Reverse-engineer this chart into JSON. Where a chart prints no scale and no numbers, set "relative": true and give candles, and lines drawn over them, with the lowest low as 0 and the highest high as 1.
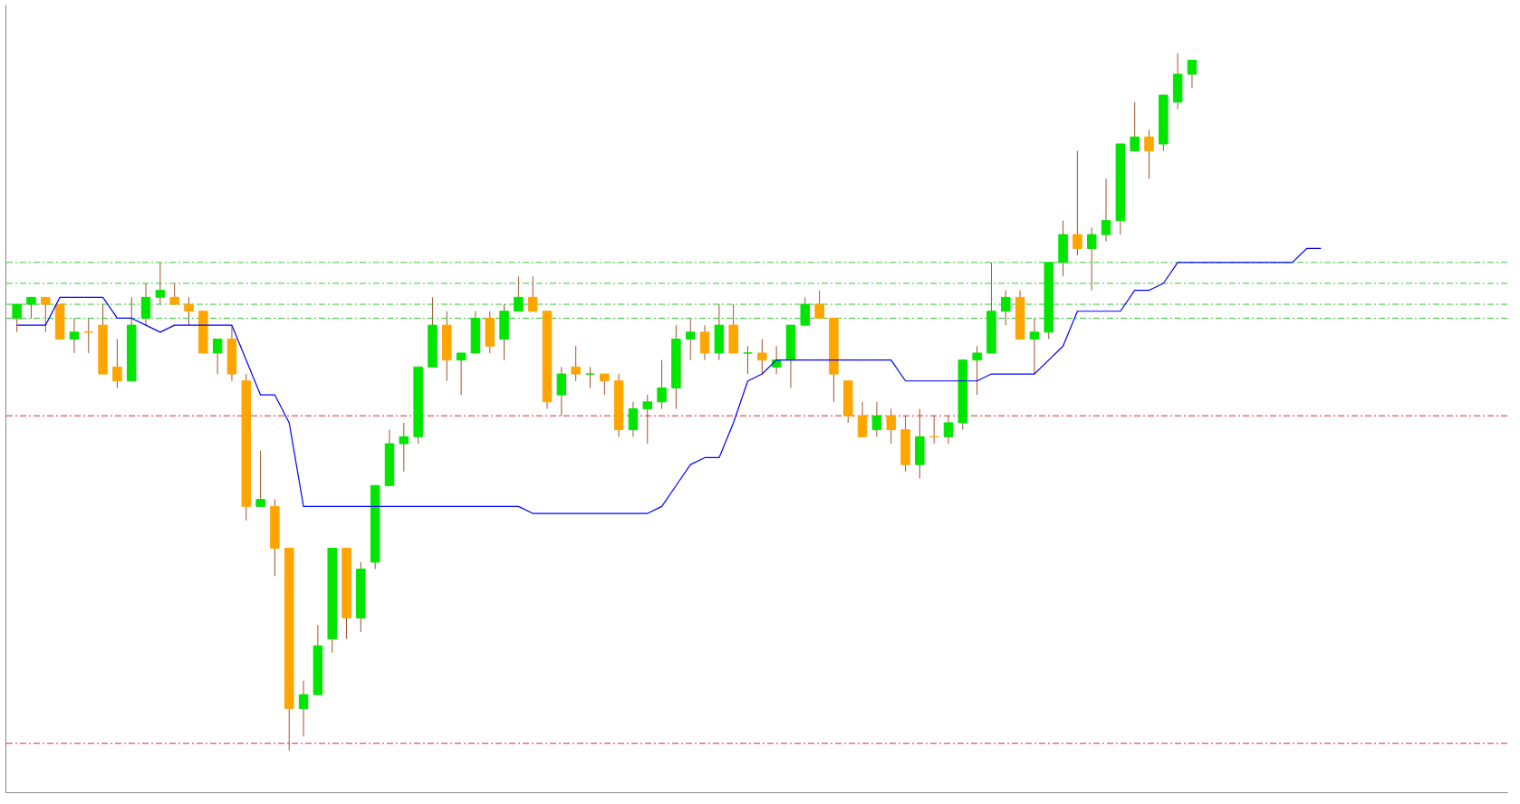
{
  "chart_data": {
    "type": "candlestick",
    "relative": true,
    "grid": false,
    "categories": [
      null,
      null,
      null,
      null,
      null,
      null,
      null,
      null,
      null,
      null,
      null,
      null,
      null,
      null,
      null,
      null,
      null,
      null,
      null,
      null,
      null,
      null,
      null,
      null,
      null,
      null,
      null,
      null,
      null,
      null,
      null,
      null,
      null,
      null,
      null,
      null,
      null,
      null,
      null,
      null,
      null,
      null,
      null,
      null,
      null,
      null,
      null,
      null,
      null,
      null,
      null,
      null,
      null,
      null,
      null,
      null,
      null,
      null,
      null,
      null,
      null,
      null,
      null,
      null,
      null,
      null,
      null,
      null,
      null,
      null,
      null,
      null,
      null,
      null,
      null,
      null,
      null,
      null,
      null,
      null,
      null,
      null,
      null,
      null,
      null,
      null,
      null,
      null,
      null,
      null,
      null,
      null
    ],
    "series": [
      {
        "ohlc": [
          [
            0.62,
            0.64,
            0.6,
            0.64
          ],
          [
            0.64,
            0.65,
            0.62,
            0.65
          ],
          [
            0.65,
            0.65,
            0.6,
            0.64
          ],
          [
            0.64,
            0.64,
            0.59,
            0.59
          ],
          [
            0.59,
            0.62,
            0.57,
            0.6
          ],
          [
            0.6,
            0.62,
            0.57,
            0.6
          ],
          [
            0.61,
            0.64,
            0.54,
            0.54
          ],
          [
            0.55,
            0.59,
            0.52,
            0.53
          ],
          [
            0.53,
            0.65,
            0.53,
            0.61
          ],
          [
            0.62,
            0.67,
            0.61,
            0.65
          ],
          [
            0.65,
            0.7,
            0.64,
            0.66
          ],
          [
            0.65,
            0.67,
            0.64,
            0.64
          ],
          [
            0.64,
            0.65,
            0.61,
            0.63
          ],
          [
            0.63,
            0.63,
            0.57,
            0.57
          ],
          [
            0.57,
            0.59,
            0.54,
            0.59
          ],
          [
            0.59,
            0.61,
            0.53,
            0.54
          ],
          [
            0.53,
            0.54,
            0.33,
            0.35
          ],
          [
            0.35,
            0.43,
            0.35,
            0.36
          ],
          [
            0.35,
            0.36,
            0.25,
            0.29
          ],
          [
            0.29,
            0.29,
            0,
            0.06
          ],
          [
            0.06,
            0.1,
            0.02,
            0.08
          ],
          [
            0.08,
            0.18,
            0.08,
            0.15
          ],
          [
            0.16,
            0.29,
            0.14,
            0.29
          ],
          [
            0.29,
            0.29,
            0.16,
            0.19
          ],
          [
            0.19,
            0.27,
            0.17,
            0.26
          ],
          [
            0.27,
            0.38,
            0.26,
            0.38
          ],
          [
            0.38,
            0.46,
            0.38,
            0.44
          ],
          [
            0.44,
            0.47,
            0.4,
            0.45
          ],
          [
            0.45,
            0.55,
            0.44,
            0.55
          ],
          [
            0.55,
            0.65,
            0.55,
            0.61
          ],
          [
            0.61,
            0.63,
            0.53,
            0.56
          ],
          [
            0.56,
            0.57,
            0.51,
            0.57
          ],
          [
            0.57,
            0.63,
            0.57,
            0.62
          ],
          [
            0.62,
            0.63,
            0.57,
            0.58
          ],
          [
            0.59,
            0.64,
            0.56,
            0.63
          ],
          [
            0.63,
            0.68,
            0.63,
            0.65
          ],
          [
            0.65,
            0.68,
            0.63,
            0.63
          ],
          [
            0.63,
            0.63,
            0.49,
            0.5
          ],
          [
            0.51,
            0.55,
            0.48,
            0.54
          ],
          [
            0.55,
            0.58,
            0.53,
            0.54
          ],
          [
            0.54,
            0.55,
            0.52,
            0.54
          ],
          [
            0.54,
            0.54,
            0.51,
            0.53
          ],
          [
            0.53,
            0.54,
            0.45,
            0.46
          ],
          [
            0.46,
            0.5,
            0.45,
            0.49
          ],
          [
            0.49,
            0.51,
            0.44,
            0.5
          ],
          [
            0.5,
            0.56,
            0.49,
            0.52
          ],
          [
            0.52,
            0.61,
            0.49,
            0.59
          ],
          [
            0.59,
            0.62,
            0.56,
            0.6
          ],
          [
            0.6,
            0.61,
            0.56,
            0.57
          ],
          [
            0.57,
            0.64,
            0.56,
            0.61
          ],
          [
            0.61,
            0.64,
            0.57,
            0.57
          ],
          [
            0.57,
            0.58,
            0.54,
            0.57
          ],
          [
            0.57,
            0.59,
            0.54,
            0.56
          ],
          [
            0.55,
            0.58,
            0.54,
            0.56
          ],
          [
            0.56,
            0.61,
            0.52,
            0.61
          ],
          [
            0.61,
            0.65,
            0.61,
            0.64
          ],
          [
            0.64,
            0.66,
            0.62,
            0.62
          ],
          [
            0.62,
            0.62,
            0.5,
            0.54
          ],
          [
            0.53,
            0.53,
            0.47,
            0.48
          ],
          [
            0.48,
            0.5,
            0.45,
            0.45
          ],
          [
            0.46,
            0.5,
            0.45,
            0.48
          ],
          [
            0.48,
            0.49,
            0.44,
            0.46
          ],
          [
            0.46,
            0.48,
            0.4,
            0.41
          ],
          [
            0.41,
            0.49,
            0.39,
            0.45
          ],
          [
            0.45,
            0.48,
            0.44,
            0.45
          ],
          [
            0.45,
            0.48,
            0.44,
            0.47
          ],
          [
            0.47,
            0.56,
            0.46,
            0.56
          ],
          [
            0.56,
            0.58,
            0.51,
            0.57
          ],
          [
            0.57,
            0.7,
            0.57,
            0.63
          ],
          [
            0.63,
            0.66,
            0.61,
            0.65
          ],
          [
            0.65,
            0.66,
            0.59,
            0.59
          ],
          [
            0.59,
            0.62,
            0.54,
            0.6
          ],
          [
            0.6,
            0.7,
            0.59,
            0.7
          ],
          [
            0.7,
            0.76,
            0.68,
            0.74
          ],
          [
            0.74,
            0.86,
            0.71,
            0.72
          ],
          [
            0.72,
            0.75,
            0.66,
            0.74
          ],
          [
            0.74,
            0.82,
            0.73,
            0.76
          ],
          [
            0.76,
            0.87,
            0.74,
            0.87
          ],
          [
            0.86,
            0.93,
            0.86,
            0.88
          ],
          [
            0.88,
            0.89,
            0.82,
            0.86
          ],
          [
            0.87,
            0.94,
            0.86,
            0.94
          ],
          [
            0.93,
            1,
            0.92,
            0.97
          ],
          [
            0.97,
            0.99,
            0.95,
            0.99
          ],
          null,
          null,
          null,
          null,
          null,
          null,
          null,
          null,
          null
        ],
        "colors": [
          "#00e600",
          "#00e600",
          "#ffa500",
          "#ffa500",
          "#00e600",
          "#ffa500",
          "#ffa500",
          "#ffa500",
          "#00e600",
          "#00e600",
          "#00e600",
          "#ffa500",
          "#ffa500",
          "#ffa500",
          "#00e600",
          "#ffa500",
          "#ffa500",
          "#00e600",
          "#ffa500",
          "#ffa500",
          "#00e600",
          "#00e600",
          "#00e600",
          "#ffa500",
          "#00e600",
          "#00e600",
          "#00e600",
          "#00e600",
          "#00e600",
          "#00e600",
          "#ffa500",
          "#00e600",
          "#00e600",
          "#ffa500",
          "#00e600",
          "#00e600",
          "#ffa500",
          "#ffa500",
          "#00e600",
          "#ffa500",
          "#00e600",
          "#ffa500",
          "#ffa500",
          "#00e600",
          "#00e600",
          "#00e600",
          "#00e600",
          "#00e600",
          "#ffa500",
          "#00e600",
          "#ffa500",
          "#00e600",
          "#ffa500",
          "#00e600",
          "#00e600",
          "#00e600",
          "#ffa500",
          "#ffa500",
          "#ffa500",
          "#ffa500",
          "#00e600",
          "#ffa500",
          "#ffa500",
          "#00e600",
          "#ffa500",
          "#00e600",
          "#00e600",
          "#00e600",
          "#00e600",
          "#00e600",
          "#ffa500",
          "#00e600",
          "#00e600",
          "#00e600",
          "#ffa500",
          "#00e600",
          "#00e600",
          "#00e600",
          "#00e600",
          "#ffa500",
          "#00e600",
          "#00e600",
          "#00e600",
          null,
          null,
          null,
          null,
          null,
          null,
          null,
          null,
          null
        ]
      },
      {
        "type": "line",
        "color": "#0000ff",
        "values": [
          0.61,
          0.61,
          0.61,
          0.65,
          0.65,
          0.65,
          0.65,
          0.62,
          0.62,
          0.61,
          0.6,
          0.61,
          0.61,
          0.61,
          0.61,
          0.61,
          0.56,
          0.51,
          0.51,
          0.47,
          0.35,
          0.35,
          0.35,
          0.35,
          0.35,
          0.35,
          0.35,
          0.35,
          0.35,
          0.35,
          0.35,
          0.35,
          0.35,
          0.35,
          0.35,
          0.35,
          0.34,
          0.34,
          0.34,
          0.34,
          0.34,
          0.34,
          0.34,
          0.34,
          0.34,
          0.35,
          0.38,
          0.41,
          0.42,
          0.42,
          0.47,
          0.53,
          0.54,
          0.56,
          0.56,
          0.56,
          0.56,
          0.56,
          0.56,
          0.56,
          0.56,
          0.56,
          0.53,
          0.53,
          0.53,
          0.53,
          0.53,
          0.53,
          0.54,
          0.54,
          0.54,
          0.54,
          0.56,
          0.58,
          0.63,
          0.63,
          0.63,
          0.63,
          0.66,
          0.66,
          0.67,
          0.7,
          0.7,
          0.7,
          0.7,
          0.7,
          0.7,
          0.7,
          0.7,
          0.7,
          0.72,
          0.72
        ]
      }
    ],
    "ref_lines": [
      {
        "axis": "y",
        "value": 0.7,
        "color": "#33cc33",
        "line_style": "dashed"
      },
      {
        "axis": "y",
        "value": 0.67,
        "color": "#33cc33",
        "line_style": "dashed"
      },
      {
        "axis": "y",
        "value": 0.64,
        "color": "#33cc33",
        "line_style": "dashed"
      },
      {
        "axis": "y",
        "value": 0.62,
        "color": "#33cc33",
        "line_style": "dashed"
      },
      {
        "axis": "y",
        "value": 0.48,
        "color": "#e02828",
        "line_style": "dashed"
      },
      {
        "axis": "y",
        "value": 0.01,
        "color": "#e02828",
        "line_style": "dashed"
      }
    ]
  }
}
